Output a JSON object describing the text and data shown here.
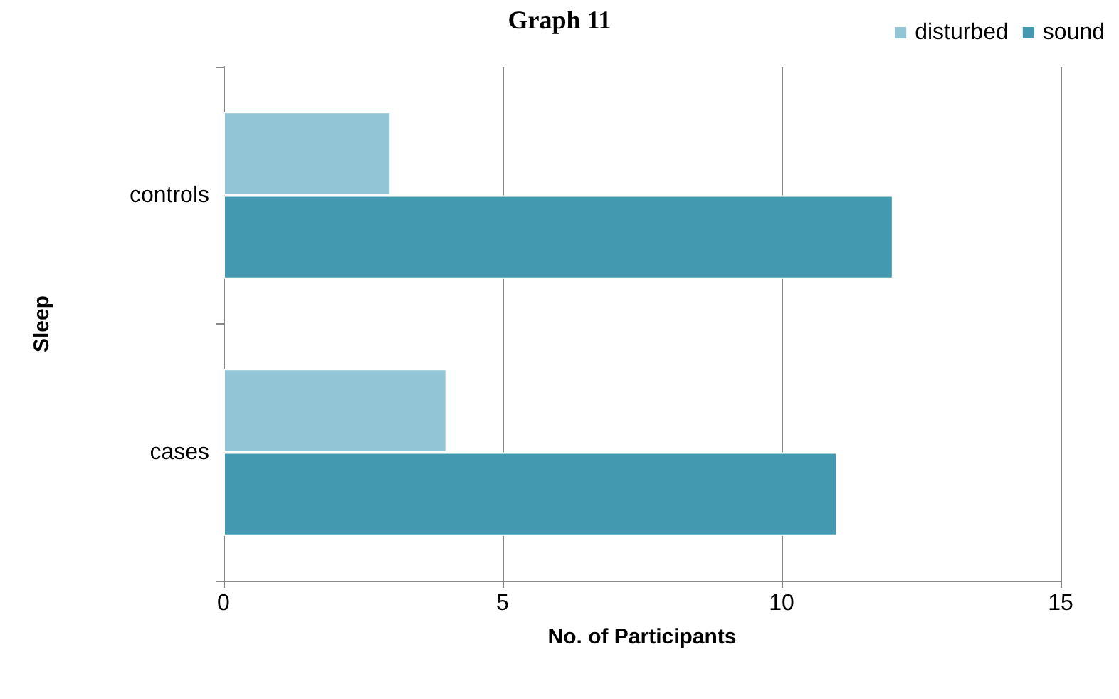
{
  "chart_data": {
    "type": "bar",
    "orientation": "horizontal",
    "title": "Graph 11",
    "xlabel": "No. of Participants",
    "ylabel": "Sleep",
    "categories": [
      "controls",
      "cases"
    ],
    "series": [
      {
        "name": "disturbed",
        "color": "#92c5d6",
        "values": [
          3,
          4
        ]
      },
      {
        "name": "sound",
        "color": "#4299b0",
        "values": [
          12,
          11
        ]
      }
    ],
    "xlim": [
      0,
      15
    ],
    "xticks": [
      0,
      5,
      10,
      15
    ],
    "grid": "x",
    "legend": "top right"
  }
}
